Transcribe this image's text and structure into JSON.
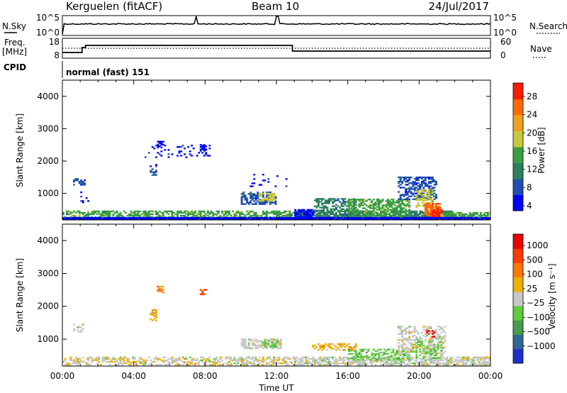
{
  "header": {
    "station": "Kerguelen (fitACF)",
    "beam": "Beam 10",
    "date": "24/Jul/2017"
  },
  "panels": {
    "nsky": {
      "left_label": "N.Sky",
      "left_ticks": [
        "10^5",
        "10^0"
      ],
      "right_label": "N.Search",
      "right_ticks": [
        "10^5",
        "10^0"
      ]
    },
    "freq": {
      "left_label_1": "Freq.",
      "left_label_2": "[MHz]",
      "left_ticks": [
        "18",
        "8"
      ],
      "right_label": "Nave",
      "right_ticks": [
        "60",
        "0"
      ]
    },
    "cpid": {
      "label": "CPID",
      "mode": "normal (fast) 151"
    }
  },
  "chart_data": [
    {
      "type": "heatmap",
      "name": "power",
      "ylabel": "Slant Range [km]",
      "yticks": [
        "4000",
        "3000",
        "2000",
        "1000"
      ],
      "ylim": [
        180,
        4500
      ],
      "xlim": [
        0,
        24
      ],
      "colorbar": {
        "label": "Power [dB]",
        "ticks": [
          "28",
          "24",
          "20",
          "16",
          "12",
          "8",
          "4"
        ],
        "range": [
          0,
          30
        ],
        "colors": [
          "#0000ff",
          "#1f4fb0",
          "#2f7f5f",
          "#3aa040",
          "#c8c83c",
          "#f0a020",
          "#ff6a00",
          "#ff1a00"
        ]
      },
      "regions": [
        {
          "t0": 0.0,
          "t1": 13.0,
          "r0": 200,
          "r1": 470,
          "c": 3,
          "d": 0.6
        },
        {
          "t0": 0.6,
          "t1": 1.3,
          "r0": 1250,
          "r1": 1450,
          "c": 1,
          "d": 0.5
        },
        {
          "t0": 1.0,
          "t1": 1.5,
          "r0": 700,
          "r1": 1100,
          "c": 0,
          "d": 0.15
        },
        {
          "t0": 4.9,
          "t1": 5.2,
          "r0": 1550,
          "r1": 1900,
          "c": 1,
          "d": 0.5
        },
        {
          "t0": 5.3,
          "t1": 5.6,
          "r0": 2400,
          "r1": 2600,
          "c": 0,
          "d": 0.5
        },
        {
          "t0": 4.5,
          "t1": 8.2,
          "r0": 2100,
          "r1": 2500,
          "c": 0,
          "d": 0.12
        },
        {
          "t0": 7.7,
          "t1": 8.0,
          "r0": 2300,
          "r1": 2500,
          "c": 0,
          "d": 0.6
        },
        {
          "t0": 10.0,
          "t1": 11.9,
          "r0": 650,
          "r1": 1050,
          "c": 1,
          "d": 0.6
        },
        {
          "t0": 11.0,
          "t1": 11.8,
          "r0": 750,
          "r1": 1000,
          "c": 4,
          "d": 0.7
        },
        {
          "t0": 10.5,
          "t1": 12.5,
          "r0": 1200,
          "r1": 1600,
          "c": 0,
          "d": 0.1
        },
        {
          "t0": 13.0,
          "t1": 22.0,
          "r0": 200,
          "r1": 450,
          "c": 2,
          "d": 0.8
        },
        {
          "t0": 13.0,
          "t1": 14.0,
          "r0": 200,
          "r1": 500,
          "c": 0,
          "d": 0.8
        },
        {
          "t0": 14.0,
          "t1": 16.5,
          "r0": 450,
          "r1": 850,
          "c": 2,
          "d": 0.5
        },
        {
          "t0": 16.0,
          "t1": 19.5,
          "r0": 250,
          "r1": 800,
          "c": 3,
          "d": 0.6
        },
        {
          "t0": 18.8,
          "t1": 21.0,
          "r0": 800,
          "r1": 1500,
          "c": 1,
          "d": 0.55
        },
        {
          "t0": 19.8,
          "t1": 20.8,
          "r0": 550,
          "r1": 1100,
          "c": 4,
          "d": 0.6
        },
        {
          "t0": 20.3,
          "t1": 21.2,
          "r0": 300,
          "r1": 700,
          "c": 6,
          "d": 0.85
        },
        {
          "t0": 20.7,
          "t1": 21.3,
          "r0": 250,
          "r1": 500,
          "c": 7,
          "d": 0.9
        },
        {
          "t0": 21.2,
          "t1": 24.0,
          "r0": 200,
          "r1": 420,
          "c": 3,
          "d": 0.7
        },
        {
          "t0": 0.0,
          "t1": 24.0,
          "r0": 180,
          "r1": 240,
          "c": 0,
          "d": 1.0
        }
      ]
    },
    {
      "type": "heatmap",
      "name": "velocity",
      "ylabel": "Slant Range [km]",
      "yticks": [
        "4000",
        "3000",
        "2000",
        "1000"
      ],
      "ylim": [
        180,
        4500
      ],
      "xlim": [
        0,
        24
      ],
      "xlabel": "Time UT",
      "xticks": [
        "00:00",
        "04:00",
        "08:00",
        "12:00",
        "16:00",
        "20:00",
        "00:00"
      ],
      "colorbar": {
        "label": "Velocity [m s⁻¹]",
        "ticks": [
          "1000",
          "500",
          "100",
          "25",
          "−25",
          "−100",
          "−500",
          "−1000"
        ],
        "colors": [
          "#1e2fc8",
          "#2f6a96",
          "#4a9a4a",
          "#5ccc3a",
          "#c8c8c8",
          "#f0b000",
          "#ff7800",
          "#ff3a00",
          "#ee0000"
        ]
      },
      "regions": [
        {
          "t0": 0.0,
          "t1": 13.0,
          "r0": 200,
          "r1": 460,
          "c": 4,
          "d": 0.45
        },
        {
          "t0": 0.0,
          "t1": 13.0,
          "r0": 200,
          "r1": 420,
          "c": 5,
          "d": 0.1
        },
        {
          "t0": 0.6,
          "t1": 1.2,
          "r0": 1200,
          "r1": 1450,
          "c": 4,
          "d": 0.4
        },
        {
          "t0": 4.9,
          "t1": 5.2,
          "r0": 1550,
          "r1": 1900,
          "c": 5,
          "d": 0.5
        },
        {
          "t0": 5.3,
          "t1": 5.6,
          "r0": 2400,
          "r1": 2600,
          "c": 6,
          "d": 0.5
        },
        {
          "t0": 7.7,
          "t1": 8.0,
          "r0": 2300,
          "r1": 2500,
          "c": 7,
          "d": 0.6
        },
        {
          "t0": 10.0,
          "t1": 12.2,
          "r0": 700,
          "r1": 1000,
          "c": 4,
          "d": 0.6
        },
        {
          "t0": 11.2,
          "t1": 12.0,
          "r0": 750,
          "r1": 950,
          "c": 3,
          "d": 0.4
        },
        {
          "t0": 13.0,
          "t1": 24.0,
          "r0": 200,
          "r1": 450,
          "c": 4,
          "d": 0.7
        },
        {
          "t0": 14.0,
          "t1": 16.5,
          "r0": 650,
          "r1": 850,
          "c": 5,
          "d": 0.5
        },
        {
          "t0": 16.0,
          "t1": 19.5,
          "r0": 350,
          "r1": 700,
          "c": 3,
          "d": 0.5
        },
        {
          "t0": 18.8,
          "t1": 21.5,
          "r0": 550,
          "r1": 1400,
          "c": 4,
          "d": 0.5
        },
        {
          "t0": 19.8,
          "t1": 21.3,
          "r0": 400,
          "r1": 900,
          "c": 3,
          "d": 0.4
        },
        {
          "t0": 20.4,
          "t1": 21.0,
          "r0": 1050,
          "r1": 1250,
          "c": 8,
          "d": 0.3
        }
      ]
    }
  ]
}
